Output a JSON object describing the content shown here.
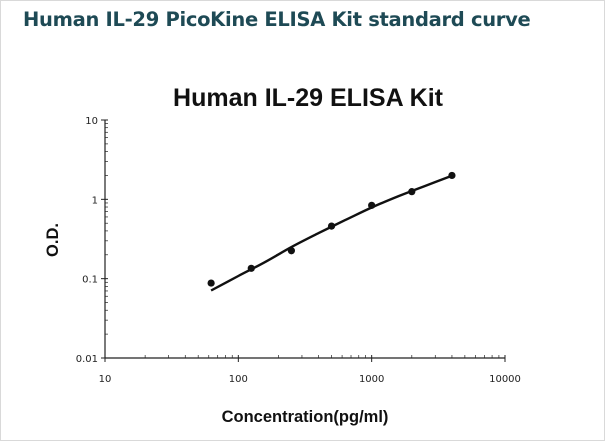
{
  "heading": "Human IL-29 PicoKine ELISA Kit standard curve",
  "chart_data": {
    "type": "scatter",
    "title": "Human IL-29 ELISA Kit",
    "xlabel": "Concentration(pg/ml)",
    "ylabel": "O.D.",
    "x_scale": "log",
    "y_scale": "log",
    "xlim": [
      10,
      10000
    ],
    "ylim": [
      0.01,
      10
    ],
    "x_ticks": [
      10,
      100,
      1000,
      10000
    ],
    "x_tick_labels": [
      "10",
      "100",
      "1000",
      "10000"
    ],
    "y_ticks": [
      0.01,
      0.1,
      1,
      10
    ],
    "y_tick_labels": [
      "0.01",
      "0.1",
      "1",
      "10"
    ],
    "grid": false,
    "series": [
      {
        "x": [
          62.5,
          125,
          250,
          500,
          1000,
          2000,
          4000
        ],
        "y": [
          0.088,
          0.135,
          0.225,
          0.46,
          0.84,
          1.25,
          2.0
        ]
      }
    ],
    "fit_curve": {
      "x": [
        62.5,
        100,
        160,
        250,
        400,
        630,
        1000,
        1600,
        2500,
        4000
      ],
      "y": [
        0.071,
        0.108,
        0.163,
        0.25,
        0.375,
        0.545,
        0.79,
        1.1,
        1.47,
        1.98
      ]
    },
    "colors": {
      "points": "#111111",
      "curve": "#111111",
      "heading": "#1e4a55"
    }
  }
}
